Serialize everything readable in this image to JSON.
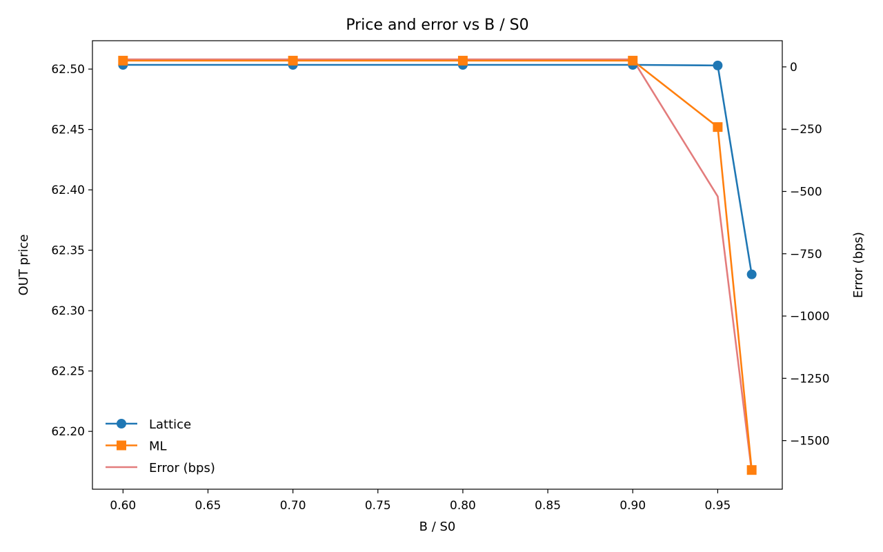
{
  "chart_data": {
    "type": "line",
    "title": "Price and error vs B / S0",
    "xlabel": "B / S0",
    "ylabel": "OUT price",
    "y2label": "Error (bps)",
    "xlim": [
      0.582,
      0.988
    ],
    "ylim": [
      62.1521,
      62.5235
    ],
    "y2lim": [
      -1695,
      105
    ],
    "xticks": [
      "0.60",
      "0.65",
      "0.70",
      "0.75",
      "0.80",
      "0.85",
      "0.90",
      "0.95"
    ],
    "yticks": [
      "62.20",
      "62.25",
      "62.30",
      "62.35",
      "62.40",
      "62.45",
      "62.50"
    ],
    "y2ticks": [
      "0",
      "−250",
      "−500",
      "−750",
      "−1000",
      "−1250",
      "−1500"
    ],
    "x": [
      0.6,
      0.7,
      0.8,
      0.9,
      0.95,
      0.97
    ],
    "series": [
      {
        "name": "Lattice",
        "axis": "left",
        "marker": "circle",
        "color": "#1f77b4",
        "values": [
          62.5035,
          62.5035,
          62.5035,
          62.5035,
          62.503,
          62.33
        ]
      },
      {
        "name": "ML",
        "axis": "left",
        "marker": "square",
        "color": "#ff7f0e",
        "values": [
          62.507,
          62.507,
          62.507,
          62.507,
          62.452,
          62.168
        ]
      },
      {
        "name": "Error (bps)",
        "axis": "right",
        "marker": "none",
        "color": "#e37c7c",
        "values": [
          30,
          30,
          30,
          30,
          -520,
          -1625
        ]
      }
    ],
    "legend_position": "lower-left",
    "grid": false
  }
}
